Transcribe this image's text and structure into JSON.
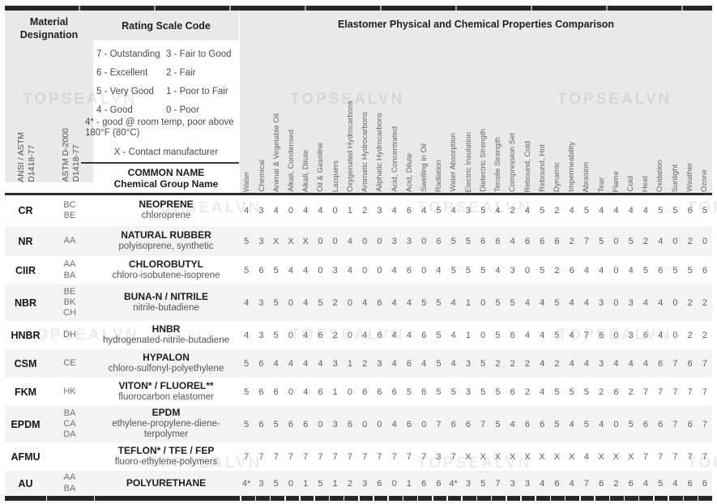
{
  "colors": {
    "header_band": "#e9e9e9",
    "row_stripe": "#f3f3f3",
    "rule_dark": "#262626",
    "value_text": "#5d5d5d"
  },
  "watermark_text": "TOPSEALVN",
  "header": {
    "material_designation": "Material Designation",
    "rating_scale_title": "Rating Scale Code",
    "comparison_title": "Elastomer Physical and Chemical Properties Comparison",
    "ansi_label": [
      "ANSI / ASTM",
      "D1418-77"
    ],
    "astm_label": [
      "ASTM D-2000",
      "D1418-77"
    ],
    "rating_scale": [
      [
        "7 - Outstanding",
        "3 - Fair to Good"
      ],
      [
        "6 - Excellent",
        "2 - Fair"
      ],
      [
        "5 - Very Good",
        "1 - Poor to Fair"
      ],
      [
        "4 - Good",
        "0 - Poor"
      ]
    ],
    "rating_note": "4* - good @ room temp, poor above 180°F (80°C)",
    "rating_contact": "X - Contact manufacturer",
    "common_name_title": "COMMON NAME",
    "common_name_subtitle": "Chemical Group Name"
  },
  "table": {
    "columns": [
      "Water",
      "Chemical",
      "Animal & Vegetable Oil",
      "Alkali, Condensed",
      "Alkali, Dilute",
      "Oil & Gasoline",
      "Lacquers",
      "Oxygenated Hydrocarbons",
      "Aromatic Hydrocarbons",
      "Aliphatic Hydrocarbons",
      "Acid, Concentrated",
      "Acid, Dilute",
      "Swelling in Oil",
      "Radiation",
      "Water Absorption",
      "Electric Insulation",
      "Dielectric Strength",
      "Tensile Strength",
      "Compression Set",
      "Rebound, Cold",
      "Rebound, Hot",
      "Dynamic",
      "Impermeability",
      "Abrasion",
      "Tear",
      "Flame",
      "Cold",
      "Heat",
      "Oxidation",
      "Sunlight",
      "Weather",
      "Ozone"
    ],
    "rows": [
      {
        "code": "CR",
        "astm": [
          "BC",
          "BE"
        ],
        "name": "NEOPRENE",
        "chem": "chloroprene",
        "values": [
          "4",
          "3",
          "4",
          "0",
          "4",
          "4",
          "0",
          "1",
          "2",
          "3",
          "4",
          "6",
          "4",
          "5",
          "4",
          "3",
          "5",
          "4",
          "2",
          "4",
          "5",
          "2",
          "4",
          "5",
          "4",
          "4",
          "4",
          "4",
          "5",
          "5",
          "6",
          "5"
        ]
      },
      {
        "code": "NR",
        "astm": [
          "AA"
        ],
        "name": "NATURAL RUBBER",
        "chem": "polyisoprene, synthetic",
        "values": [
          "5",
          "3",
          "X",
          "X",
          "X",
          "0",
          "0",
          "4",
          "0",
          "0",
          "3",
          "3",
          "0",
          "6",
          "5",
          "5",
          "6",
          "6",
          "4",
          "6",
          "6",
          "6",
          "2",
          "7",
          "5",
          "0",
          "5",
          "2",
          "4",
          "0",
          "2",
          "0"
        ]
      },
      {
        "code": "CIIR",
        "astm": [
          "AA",
          "BA"
        ],
        "name": "CHLOROBUTYL",
        "chem": "chloro-isobutene-isoprene",
        "values": [
          "5",
          "6",
          "5",
          "4",
          "4",
          "0",
          "3",
          "4",
          "0",
          "0",
          "4",
          "6",
          "0",
          "4",
          "5",
          "5",
          "5",
          "4",
          "3",
          "0",
          "5",
          "2",
          "6",
          "4",
          "4",
          "0",
          "4",
          "5",
          "6",
          "5",
          "5",
          "6"
        ]
      },
      {
        "code": "NBR",
        "astm": [
          "BE",
          "BK",
          "CH"
        ],
        "name": "BUNA-N / NITRILE",
        "chem": "nitrile-butadiene",
        "values": [
          "4",
          "3",
          "5",
          "0",
          "4",
          "5",
          "2",
          "0",
          "4",
          "6",
          "4",
          "4",
          "5",
          "5",
          "4",
          "1",
          "0",
          "5",
          "5",
          "4",
          "4",
          "5",
          "4",
          "4",
          "3",
          "0",
          "3",
          "4",
          "4",
          "0",
          "2",
          "2"
        ]
      },
      {
        "code": "HNBR",
        "astm": [
          "DH"
        ],
        "name": "HNBR",
        "chem": "hydrogenated-nitrile-butadiene",
        "values": [
          "4",
          "3",
          "5",
          "0",
          "4",
          "6",
          "2",
          "0",
          "4",
          "6",
          "4",
          "4",
          "6",
          "5",
          "4",
          "1",
          "0",
          "5",
          "6",
          "4",
          "4",
          "5",
          "4",
          "7",
          "6",
          "0",
          "3",
          "6",
          "4",
          "0",
          "2",
          "2"
        ]
      },
      {
        "code": "CSM",
        "astm": [
          "CE"
        ],
        "name": "HYPALON",
        "chem": "chloro-sulfonyl-polyethylene",
        "values": [
          "5",
          "6",
          "4",
          "4",
          "4",
          "4",
          "3",
          "1",
          "2",
          "3",
          "4",
          "6",
          "4",
          "5",
          "4",
          "3",
          "5",
          "2",
          "2",
          "2",
          "4",
          "2",
          "4",
          "4",
          "3",
          "4",
          "4",
          "4",
          "6",
          "7",
          "6",
          "7"
        ]
      },
      {
        "code": "FKM",
        "astm": [
          "HK"
        ],
        "name": "VITON* / FLUOREL**",
        "chem": "fluorocarbon elastomer",
        "values": [
          "5",
          "6",
          "6",
          "0",
          "4",
          "6",
          "1",
          "0",
          "6",
          "6",
          "6",
          "5",
          "6",
          "5",
          "5",
          "3",
          "5",
          "5",
          "6",
          "2",
          "4",
          "5",
          "5",
          "5",
          "2",
          "6",
          "2",
          "7",
          "7",
          "7",
          "7",
          "7"
        ]
      },
      {
        "code": "EPDM",
        "astm": [
          "BA",
          "CA",
          "DA"
        ],
        "name": "EPDM",
        "chem": "ethylene-propylene-diene-terpolymer",
        "values": [
          "5",
          "6",
          "5",
          "6",
          "6",
          "0",
          "3",
          "6",
          "0",
          "0",
          "4",
          "6",
          "0",
          "7",
          "6",
          "6",
          "7",
          "5",
          "4",
          "6",
          "6",
          "5",
          "4",
          "5",
          "4",
          "0",
          "5",
          "6",
          "6",
          "7",
          "6",
          "7"
        ]
      },
      {
        "code": "AFMU",
        "astm": [],
        "name": "TEFLON* / TFE / FEP",
        "chem": "fluoro-ethylene-polymers",
        "values": [
          "7",
          "7",
          "7",
          "7",
          "7",
          "7",
          "7",
          "7",
          "7",
          "7",
          "7",
          "7",
          "7",
          "3",
          "7",
          "X",
          "X",
          "X",
          "X",
          "X",
          "X",
          "X",
          "X",
          "4",
          "X",
          "X",
          "X",
          "7",
          "7",
          "7",
          "7",
          "7"
        ]
      },
      {
        "code": "AU",
        "astm": [
          "AA",
          "BA"
        ],
        "name": "POLYURETHANE",
        "chem": "",
        "values": [
          "4*",
          "3",
          "5",
          "0",
          "1",
          "5",
          "1",
          "2",
          "3",
          "6",
          "0",
          "1",
          "6",
          "6",
          "4*",
          "3",
          "5",
          "7",
          "3",
          "3",
          "4",
          "6",
          "4",
          "7",
          "6",
          "2",
          "6",
          "4",
          "5",
          "4",
          "6",
          "6"
        ]
      }
    ]
  }
}
